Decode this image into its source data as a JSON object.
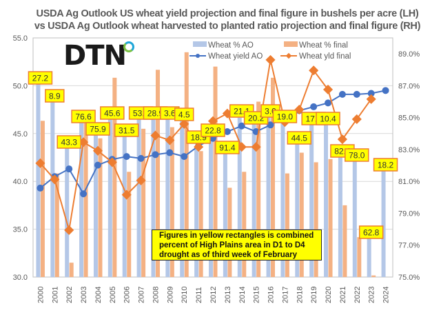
{
  "chart_data": {
    "type": "bar+line",
    "title_lines": [
      "USDA Ag Outlook US  wheat yield projection and final figure in bushels per acre (LH)",
      "vs USDA Ag Outlook wheat harvested to planted ratio projection and final figure (RH)"
    ],
    "categories": [
      "2000",
      "2001",
      "2002",
      "2003",
      "2004",
      "2005",
      "2006",
      "2007",
      "2008",
      "2009",
      "2010",
      "2011",
      "2012",
      "2013",
      "2014",
      "2015",
      "2016",
      "2017",
      "2018",
      "2019",
      "2020",
      "2021",
      "2022",
      "2023",
      "2024"
    ],
    "left_axis": {
      "ylim": [
        30,
        55
      ],
      "ticks": [
        "30.0",
        "35.0",
        "40.0",
        "45.0",
        "50.0",
        "55.0"
      ]
    },
    "right_axis": {
      "ylim": [
        75,
        90
      ],
      "ticks": [
        "75.0%",
        "77.0%",
        "79.0%",
        "81.0%",
        "83.0%",
        "85.0%",
        "87.0%",
        "89.0%"
      ]
    },
    "grid": true,
    "legend_position": "top-right",
    "series": [
      {
        "name": "Wheat % AO",
        "type": "bar",
        "axis": "right",
        "color": "#b4c7e7",
        "values": [
          87.1,
          86.0,
          83.4,
          84.7,
          83.9,
          85.0,
          83.9,
          85.0,
          85.0,
          85.0,
          84.9,
          83.1,
          84.0,
          83.0,
          85.0,
          84.7,
          85.1,
          85.0,
          83.4,
          84.7,
          84.7,
          82.7,
          82.3,
          77.6,
          81.7
        ]
      },
      {
        "name": "Wheat % final",
        "type": "bar",
        "axis": "right",
        "color": "#f4b183",
        "values": [
          84.8,
          81.5,
          75.9,
          84.9,
          83.7,
          87.5,
          81.6,
          84.3,
          88.0,
          84.4,
          89.1,
          82.9,
          88.2,
          80.6,
          81.6,
          86.0,
          87.5,
          81.5,
          82.8,
          82.2,
          82.4,
          79.5,
          77.5,
          75.1,
          null
        ]
      },
      {
        "name": "Wheat yield AO",
        "type": "line",
        "axis": "left",
        "color": "#4472c4",
        "marker": "circle",
        "values": [
          39.3,
          40.5,
          41.3,
          38.7,
          41.7,
          42.3,
          42.6,
          42.4,
          42.8,
          43.0,
          42.6,
          43.7,
          44.5,
          45.2,
          45.8,
          45.2,
          45.9,
          46.8,
          47.4,
          47.8,
          48.2,
          49.1,
          49.1,
          49.2,
          49.5
        ]
      },
      {
        "name": "Wheat yld final",
        "type": "line",
        "axis": "left",
        "color": "#ed7d31",
        "marker": "diamond",
        "values": [
          41.9,
          40.2,
          34.9,
          44.1,
          43.2,
          42.0,
          38.6,
          40.1,
          44.8,
          44.3,
          46.0,
          43.6,
          46.3,
          47.1,
          43.6,
          43.6,
          52.7,
          46.2,
          47.5,
          51.6,
          49.6,
          44.4,
          46.5,
          48.6,
          null
        ]
      }
    ],
    "drought_labels": [
      "27.2",
      "8.9",
      "43.3",
      "76.6",
      "75.9",
      "45.6",
      "31.5",
      "53.1",
      "28.9",
      "3.6",
      "4.5",
      "18.9",
      "22.8",
      "91.4",
      "21.1",
      "20.2",
      "3.0",
      "19.0",
      "44.5",
      "17.0",
      "10.4",
      "82.4",
      "78.0",
      "62.8",
      "18.2"
    ],
    "annotation": "Figures in yellow rectangles is combined percent of High Plains area in D1 to D4 drought as of third week of February",
    "logo_text": "DTN"
  }
}
